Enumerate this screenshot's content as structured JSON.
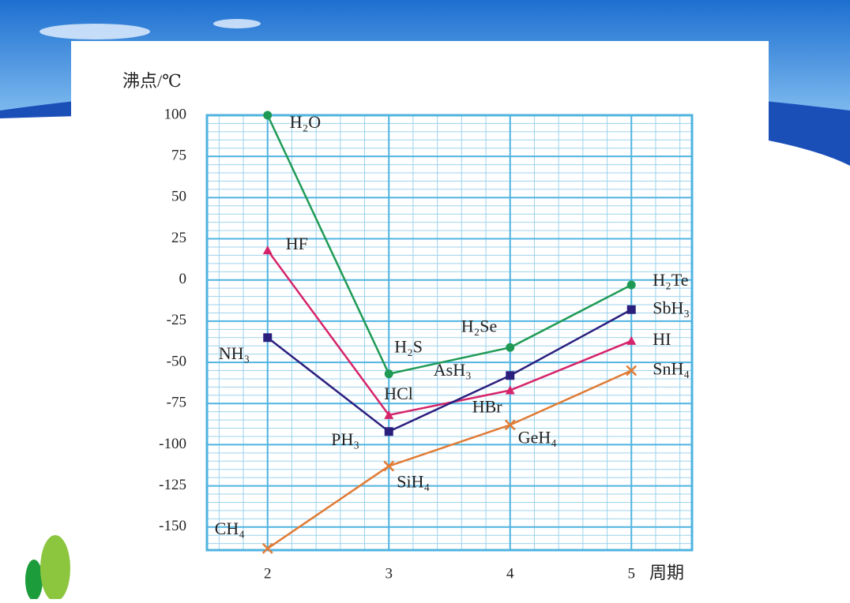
{
  "chart_data": {
    "type": "line",
    "y_axis_label": "沸点/℃",
    "x_axis_label": "周期",
    "x": [
      2,
      3,
      4,
      5
    ],
    "xlim": [
      1.5,
      5.5
    ],
    "xticks": [
      2,
      3,
      4,
      5
    ],
    "ylim": [
      -164,
      100
    ],
    "yticks": [
      100,
      75,
      50,
      25,
      0,
      -25,
      -50,
      -75,
      -100,
      -125,
      -150
    ],
    "grid": true,
    "series": [
      {
        "color": "#1f9a55",
        "marker": "circle",
        "labels": [
          "H₂O",
          "H₂S",
          "H₂Se",
          "H₂Te"
        ],
        "values": [
          100,
          -57,
          -41,
          -3
        ]
      },
      {
        "color": "#d6246a",
        "marker": "triangle",
        "labels": [
          "HF",
          "HCl",
          "HBr",
          "HI"
        ],
        "values": [
          18,
          -82,
          -67,
          -37
        ]
      },
      {
        "color": "#2b1f7e",
        "marker": "square",
        "labels": [
          "NH₃",
          "PH₃",
          "AsH₃",
          "SbH₃"
        ],
        "values": [
          -35,
          -92,
          -58,
          -18
        ]
      },
      {
        "color": "#e07b35",
        "marker": "cross",
        "labels": [
          "CH₄",
          "SiH₄",
          "GeH₄",
          "SnH₄"
        ],
        "values": [
          -163,
          -113,
          -88,
          -55
        ]
      }
    ]
  }
}
